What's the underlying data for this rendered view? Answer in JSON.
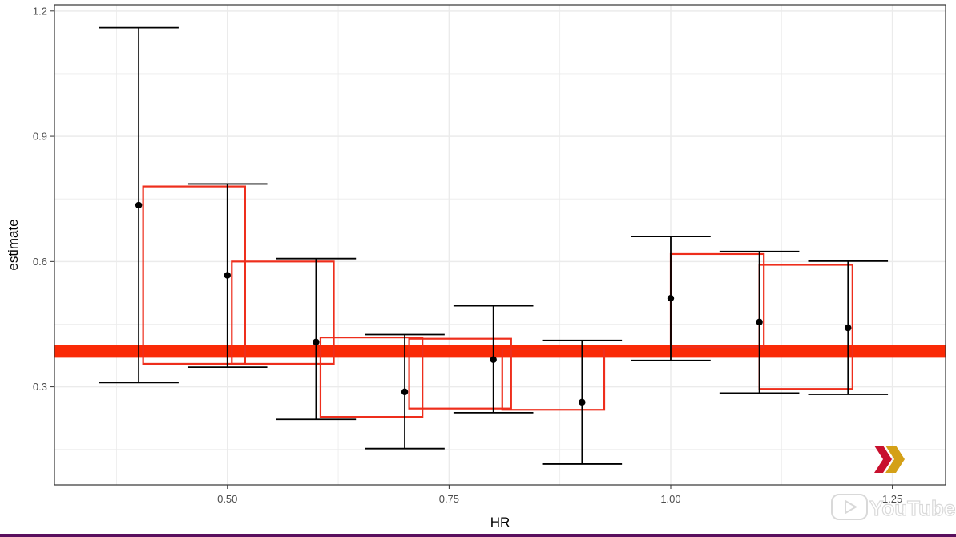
{
  "chart_data": {
    "type": "errorbar",
    "xlabel": "HR",
    "ylabel": "estimate",
    "xlim": [
      0.305,
      1.31
    ],
    "ylim": [
      0.065,
      1.215
    ],
    "x_ticks": [
      0.5,
      0.75,
      1.0,
      1.25
    ],
    "x_tick_labels": [
      "0.50",
      "0.75",
      "1.00",
      "1.25"
    ],
    "y_ticks": [
      0.3,
      0.6,
      0.9,
      1.2
    ],
    "y_tick_labels": [
      "0.3",
      "0.6",
      "0.9",
      "1.2"
    ],
    "grid": true,
    "points": [
      {
        "x": 0.4,
        "estimate": 0.735,
        "lower": 0.31,
        "upper": 1.16
      },
      {
        "x": 0.5,
        "estimate": 0.567,
        "lower": 0.347,
        "upper": 0.786
      },
      {
        "x": 0.6,
        "estimate": 0.407,
        "lower": 0.222,
        "upper": 0.607
      },
      {
        "x": 0.7,
        "estimate": 0.288,
        "lower": 0.152,
        "upper": 0.425
      },
      {
        "x": 0.8,
        "estimate": 0.365,
        "lower": 0.238,
        "upper": 0.494
      },
      {
        "x": 0.9,
        "estimate": 0.263,
        "lower": 0.115,
        "upper": 0.411
      },
      {
        "x": 1.0,
        "estimate": 0.512,
        "lower": 0.363,
        "upper": 0.66
      },
      {
        "x": 1.1,
        "estimate": 0.455,
        "lower": 0.285,
        "upper": 0.624
      },
      {
        "x": 1.2,
        "estimate": 0.441,
        "lower": 0.282,
        "upper": 0.601
      }
    ],
    "boxes": [
      {
        "x0": 0.405,
        "x1": 0.52,
        "y0": 0.355,
        "y1": 0.78
      },
      {
        "x0": 0.505,
        "x1": 0.62,
        "y0": 0.355,
        "y1": 0.6
      },
      {
        "x0": 0.605,
        "x1": 0.72,
        "y0": 0.228,
        "y1": 0.418
      },
      {
        "x0": 0.705,
        "x1": 0.82,
        "y0": 0.248,
        "y1": 0.415
      },
      {
        "x0": 0.81,
        "x1": 0.925,
        "y0": 0.245,
        "y1": 0.39
      },
      {
        "x0": 1.0,
        "x1": 1.105,
        "y0": 0.395,
        "y1": 0.618
      },
      {
        "x0": 1.1,
        "x1": 1.205,
        "y0": 0.295,
        "y1": 0.592
      }
    ],
    "reference_line_y": 0.385,
    "colors": {
      "errorbar": "#000000",
      "box": "#ee2e1c",
      "reference_line": "#fa2a06",
      "grid": "#ebebeb"
    }
  },
  "watermark": {
    "logo_colors": [
      "#c8102e",
      "#d4a017"
    ],
    "text": "YouTube"
  }
}
